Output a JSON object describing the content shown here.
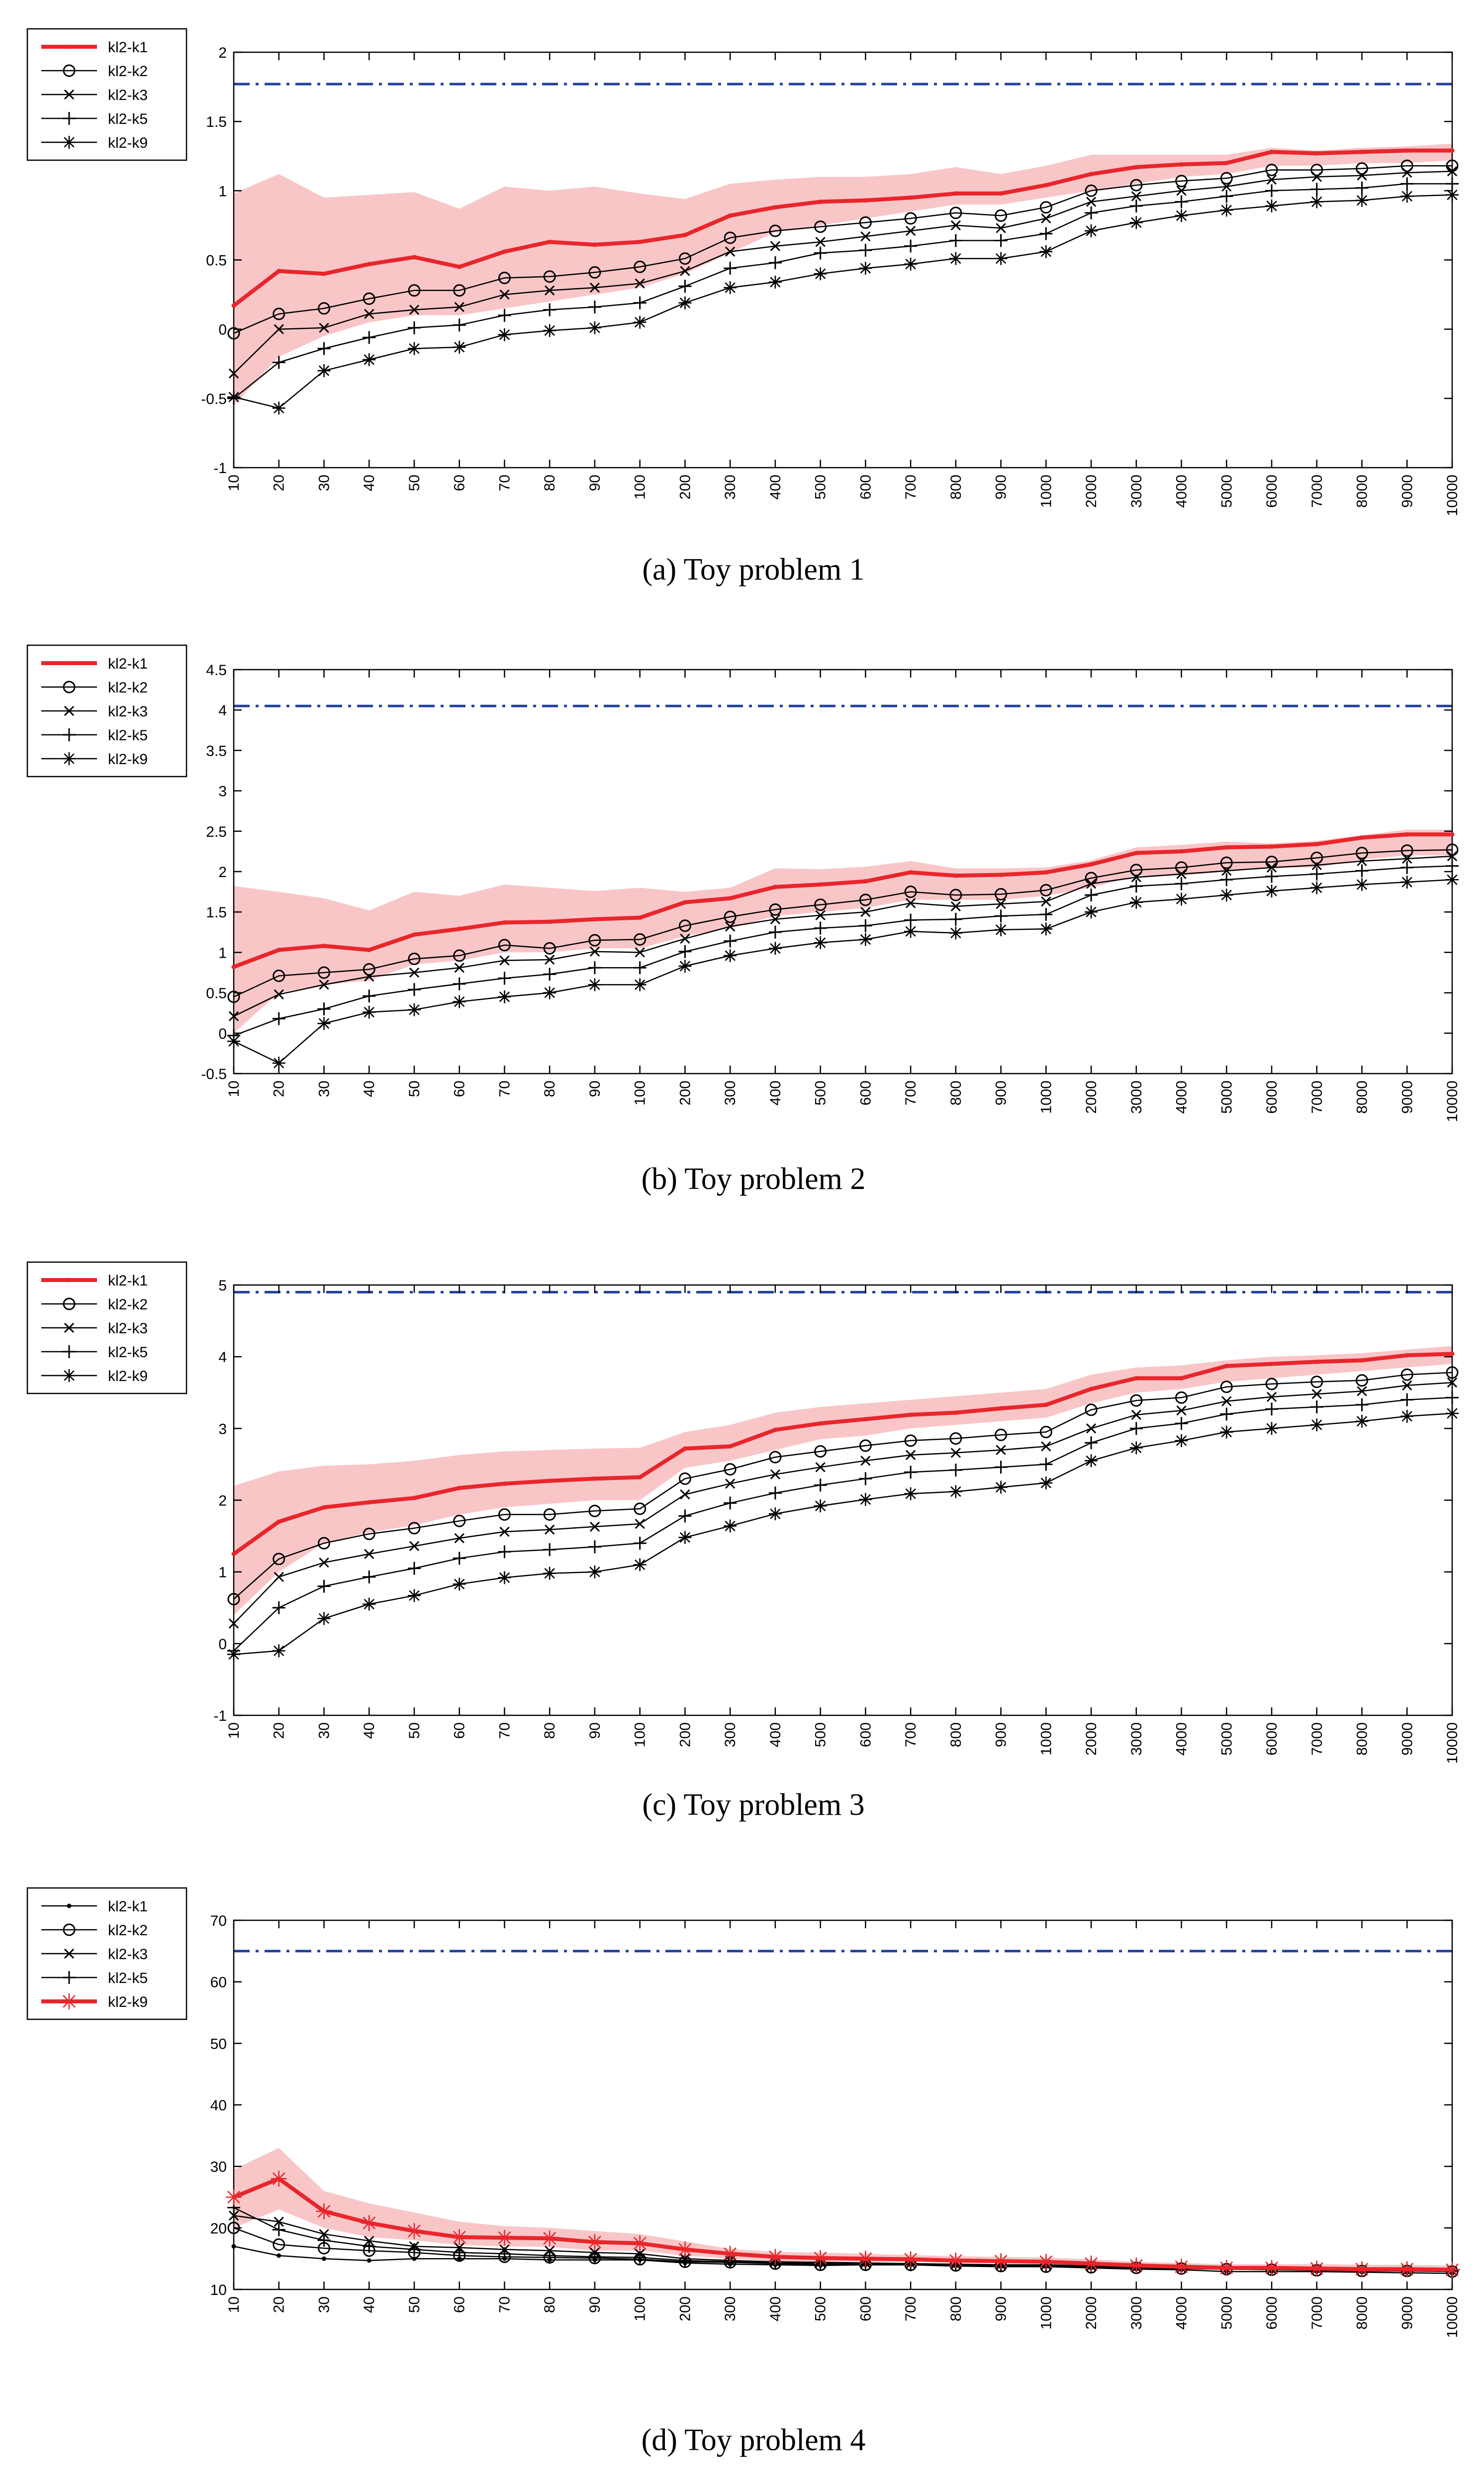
{
  "chart_data": [
    {
      "type": "line",
      "caption": "(a)  Toy problem 1",
      "x_ticks": [
        "10",
        "20",
        "30",
        "40",
        "50",
        "60",
        "70",
        "80",
        "90",
        "100",
        "200",
        "300",
        "400",
        "500",
        "600",
        "700",
        "800",
        "900",
        "1000",
        "2000",
        "3000",
        "4000",
        "5000",
        "6000",
        "7000",
        "8000",
        "9000",
        "10000"
      ],
      "ylim": [
        -1,
        2
      ],
      "y_ticks": [
        "-1",
        "-0.5",
        "0",
        "0.5",
        "1",
        "1.5",
        "2"
      ],
      "reference_line": 1.77,
      "highlight_series": "kl2-k1",
      "band": {
        "lower": [
          -0.55,
          -0.2,
          -0.05,
          0.05,
          0.1,
          0.1,
          0.15,
          0.2,
          0.25,
          0.3,
          0.4,
          0.55,
          0.7,
          0.75,
          0.8,
          0.85,
          0.9,
          0.9,
          0.95,
          1.0,
          1.05,
          1.1,
          1.12,
          1.18,
          1.18,
          1.2,
          1.2,
          1.22
        ],
        "upper": [
          0.98,
          1.12,
          0.95,
          0.97,
          0.99,
          0.87,
          1.03,
          1.0,
          1.03,
          0.98,
          0.94,
          1.05,
          1.08,
          1.1,
          1.1,
          1.12,
          1.17,
          1.12,
          1.18,
          1.26,
          1.26,
          1.26,
          1.26,
          1.31,
          1.29,
          1.31,
          1.32,
          1.34
        ]
      },
      "series": [
        {
          "name": "kl2-k1",
          "values": [
            0.17,
            0.42,
            0.4,
            0.47,
            0.52,
            0.45,
            0.56,
            0.63,
            0.61,
            0.63,
            0.68,
            0.82,
            0.88,
            0.92,
            0.93,
            0.95,
            0.98,
            0.98,
            1.04,
            1.12,
            1.17,
            1.19,
            1.2,
            1.28,
            1.27,
            1.28,
            1.29,
            1.29
          ]
        },
        {
          "name": "kl2-k2",
          "values": [
            -0.03,
            0.11,
            0.15,
            0.22,
            0.28,
            0.28,
            0.37,
            0.38,
            0.41,
            0.45,
            0.51,
            0.66,
            0.71,
            0.74,
            0.77,
            0.8,
            0.84,
            0.82,
            0.88,
            1.0,
            1.04,
            1.07,
            1.09,
            1.15,
            1.15,
            1.16,
            1.18,
            1.18
          ]
        },
        {
          "name": "kl2-k3",
          "values": [
            -0.32,
            0.0,
            0.01,
            0.11,
            0.14,
            0.16,
            0.25,
            0.28,
            0.3,
            0.33,
            0.42,
            0.56,
            0.6,
            0.63,
            0.67,
            0.71,
            0.75,
            0.73,
            0.8,
            0.92,
            0.96,
            1.0,
            1.03,
            1.08,
            1.1,
            1.11,
            1.13,
            1.14
          ]
        },
        {
          "name": "kl2-k5",
          "values": [
            -0.5,
            -0.24,
            -0.14,
            -0.06,
            0.01,
            0.03,
            0.1,
            0.14,
            0.16,
            0.19,
            0.31,
            0.44,
            0.48,
            0.55,
            0.57,
            0.6,
            0.64,
            0.64,
            0.69,
            0.84,
            0.89,
            0.92,
            0.96,
            1.0,
            1.01,
            1.02,
            1.05,
            1.05
          ]
        },
        {
          "name": "kl2-k9",
          "values": [
            -0.49,
            -0.57,
            -0.3,
            -0.22,
            -0.14,
            -0.13,
            -0.04,
            -0.01,
            0.01,
            0.05,
            0.19,
            0.3,
            0.34,
            0.4,
            0.44,
            0.47,
            0.51,
            0.51,
            0.56,
            0.71,
            0.77,
            0.82,
            0.86,
            0.89,
            0.92,
            0.93,
            0.96,
            0.97
          ]
        }
      ]
    },
    {
      "type": "line",
      "caption": "(b)  Toy problem 2",
      "x_ticks": [
        "10",
        "20",
        "30",
        "40",
        "50",
        "60",
        "70",
        "80",
        "90",
        "100",
        "200",
        "300",
        "400",
        "500",
        "600",
        "700",
        "800",
        "900",
        "1000",
        "2000",
        "3000",
        "4000",
        "5000",
        "6000",
        "7000",
        "8000",
        "9000",
        "10000"
      ],
      "ylim": [
        -0.5,
        4.5
      ],
      "y_ticks": [
        "-0.5",
        "0",
        "0.5",
        "1",
        "1.5",
        "2",
        "2.5",
        "3",
        "3.5",
        "4",
        "4.5"
      ],
      "reference_line": 4.05,
      "highlight_series": "kl2-k1",
      "band": {
        "lower": [
          0.0,
          0.5,
          0.6,
          0.65,
          0.85,
          0.9,
          1.0,
          1.0,
          1.05,
          1.05,
          1.2,
          1.3,
          1.45,
          1.5,
          1.55,
          1.65,
          1.65,
          1.65,
          1.7,
          1.8,
          1.95,
          1.95,
          2.0,
          2.05,
          2.05,
          2.15,
          2.2,
          2.2
        ],
        "upper": [
          1.82,
          1.75,
          1.67,
          1.52,
          1.75,
          1.7,
          1.84,
          1.8,
          1.76,
          1.8,
          1.75,
          1.8,
          2.04,
          2.03,
          2.06,
          2.13,
          2.04,
          2.04,
          2.05,
          2.14,
          2.3,
          2.33,
          2.37,
          2.35,
          2.38,
          2.45,
          2.52,
          2.52
        ]
      },
      "series": [
        {
          "name": "kl2-k1",
          "values": [
            0.82,
            1.03,
            1.08,
            1.03,
            1.22,
            1.29,
            1.37,
            1.38,
            1.41,
            1.43,
            1.62,
            1.67,
            1.81,
            1.84,
            1.88,
            1.99,
            1.95,
            1.96,
            1.99,
            2.09,
            2.23,
            2.25,
            2.3,
            2.31,
            2.34,
            2.42,
            2.46,
            2.46
          ]
        },
        {
          "name": "kl2-k2",
          "values": [
            0.45,
            0.71,
            0.75,
            0.79,
            0.92,
            0.96,
            1.09,
            1.05,
            1.15,
            1.16,
            1.33,
            1.44,
            1.53,
            1.59,
            1.65,
            1.75,
            1.71,
            1.72,
            1.77,
            1.92,
            2.02,
            2.05,
            2.11,
            2.12,
            2.17,
            2.23,
            2.26,
            2.27
          ]
        },
        {
          "name": "kl2-k3",
          "values": [
            0.21,
            0.48,
            0.6,
            0.7,
            0.75,
            0.81,
            0.9,
            0.91,
            1.01,
            1.0,
            1.17,
            1.32,
            1.41,
            1.46,
            1.5,
            1.61,
            1.57,
            1.6,
            1.63,
            1.85,
            1.93,
            1.97,
            2.01,
            2.05,
            2.08,
            2.13,
            2.16,
            2.19
          ]
        },
        {
          "name": "kl2-k5",
          "values": [
            -0.03,
            0.18,
            0.3,
            0.46,
            0.54,
            0.61,
            0.68,
            0.73,
            0.81,
            0.81,
            1.01,
            1.14,
            1.25,
            1.3,
            1.33,
            1.4,
            1.41,
            1.45,
            1.47,
            1.71,
            1.82,
            1.85,
            1.9,
            1.94,
            1.97,
            2.01,
            2.05,
            2.07
          ]
        },
        {
          "name": "kl2-k9",
          "values": [
            -0.1,
            -0.37,
            0.12,
            0.26,
            0.29,
            0.39,
            0.45,
            0.5,
            0.6,
            0.6,
            0.83,
            0.96,
            1.05,
            1.12,
            1.16,
            1.26,
            1.24,
            1.28,
            1.29,
            1.5,
            1.62,
            1.66,
            1.71,
            1.76,
            1.8,
            1.84,
            1.87,
            1.9
          ]
        }
      ]
    },
    {
      "type": "line",
      "caption": "(c)  Toy problem 3",
      "x_ticks": [
        "10",
        "20",
        "30",
        "40",
        "50",
        "60",
        "70",
        "80",
        "90",
        "100",
        "200",
        "300",
        "400",
        "500",
        "600",
        "700",
        "800",
        "900",
        "1000",
        "2000",
        "3000",
        "4000",
        "5000",
        "6000",
        "7000",
        "8000",
        "9000",
        "10000"
      ],
      "ylim": [
        -1,
        5
      ],
      "y_ticks": [
        "-1",
        "0",
        "1",
        "2",
        "3",
        "4",
        "5"
      ],
      "reference_line": 4.9,
      "highlight_series": "kl2-k1",
      "band": {
        "lower": [
          0.4,
          1.0,
          1.4,
          1.55,
          1.65,
          1.8,
          1.9,
          1.95,
          2.0,
          2.0,
          2.45,
          2.55,
          2.7,
          2.85,
          2.9,
          3.0,
          3.05,
          3.1,
          3.15,
          3.35,
          3.5,
          3.55,
          3.65,
          3.7,
          3.75,
          3.8,
          3.85,
          3.9
        ],
        "upper": [
          2.2,
          2.4,
          2.48,
          2.5,
          2.55,
          2.63,
          2.68,
          2.7,
          2.72,
          2.73,
          2.95,
          3.05,
          3.22,
          3.3,
          3.35,
          3.4,
          3.45,
          3.5,
          3.55,
          3.75,
          3.85,
          3.88,
          3.95,
          4.0,
          4.02,
          4.05,
          4.1,
          4.15
        ]
      },
      "series": [
        {
          "name": "kl2-k1",
          "values": [
            1.25,
            1.7,
            1.9,
            1.97,
            2.03,
            2.17,
            2.23,
            2.27,
            2.3,
            2.32,
            2.72,
            2.75,
            2.98,
            3.07,
            3.13,
            3.19,
            3.22,
            3.28,
            3.33,
            3.55,
            3.7,
            3.7,
            3.87,
            3.9,
            3.93,
            3.95,
            4.02,
            4.04
          ]
        },
        {
          "name": "kl2-k2",
          "values": [
            0.62,
            1.18,
            1.4,
            1.53,
            1.61,
            1.71,
            1.8,
            1.8,
            1.85,
            1.88,
            2.3,
            2.43,
            2.6,
            2.68,
            2.76,
            2.83,
            2.86,
            2.91,
            2.95,
            3.26,
            3.39,
            3.43,
            3.58,
            3.62,
            3.65,
            3.67,
            3.75,
            3.78
          ]
        },
        {
          "name": "kl2-k3",
          "values": [
            0.28,
            0.93,
            1.13,
            1.25,
            1.36,
            1.47,
            1.56,
            1.59,
            1.63,
            1.67,
            2.08,
            2.23,
            2.36,
            2.46,
            2.55,
            2.63,
            2.66,
            2.7,
            2.75,
            3.0,
            3.19,
            3.25,
            3.38,
            3.44,
            3.48,
            3.52,
            3.6,
            3.64
          ]
        },
        {
          "name": "kl2-k5",
          "values": [
            -0.1,
            0.5,
            0.8,
            0.93,
            1.05,
            1.19,
            1.28,
            1.31,
            1.35,
            1.4,
            1.78,
            1.96,
            2.1,
            2.21,
            2.3,
            2.39,
            2.42,
            2.46,
            2.5,
            2.8,
            3.0,
            3.07,
            3.2,
            3.27,
            3.3,
            3.33,
            3.4,
            3.43
          ]
        },
        {
          "name": "kl2-k9",
          "values": [
            -0.15,
            -0.1,
            0.35,
            0.55,
            0.67,
            0.83,
            0.92,
            0.98,
            1.0,
            1.1,
            1.48,
            1.64,
            1.81,
            1.92,
            2.01,
            2.09,
            2.12,
            2.18,
            2.24,
            2.55,
            2.73,
            2.83,
            2.95,
            3.0,
            3.05,
            3.1,
            3.17,
            3.21
          ]
        }
      ]
    },
    {
      "type": "line",
      "caption": "(d)  Toy problem 4",
      "x_ticks": [
        "10",
        "20",
        "30",
        "40",
        "50",
        "60",
        "70",
        "80",
        "90",
        "100",
        "200",
        "300",
        "400",
        "500",
        "600",
        "700",
        "800",
        "900",
        "1000",
        "2000",
        "3000",
        "4000",
        "5000",
        "6000",
        "7000",
        "8000",
        "9000",
        "10000"
      ],
      "ylim": [
        10,
        70
      ],
      "y_ticks": [
        "10",
        "20",
        "30",
        "40",
        "50",
        "60",
        "70"
      ],
      "reference_line": 65,
      "highlight_series": "kl2-k9",
      "band": {
        "lower": [
          20.0,
          23.0,
          20.0,
          18.5,
          18.0,
          17.2,
          17.0,
          16.9,
          16.3,
          16.3,
          15.5,
          15.0,
          14.6,
          14.5,
          14.5,
          14.5,
          14.3,
          14.3,
          14.3,
          14.0,
          13.7,
          13.5,
          13.2,
          13.2,
          13.2,
          13.0,
          13.0,
          12.8
        ],
        "upper": [
          29.5,
          33.0,
          26.0,
          24.0,
          22.5,
          21.0,
          20.3,
          20.0,
          19.5,
          19.0,
          17.8,
          16.6,
          16.1,
          16.0,
          15.8,
          15.6,
          15.4,
          15.3,
          15.2,
          14.9,
          14.5,
          14.3,
          14.1,
          14.1,
          14.1,
          14.0,
          14.0,
          13.9
        ]
      },
      "series": [
        {
          "name": "kl2-k1",
          "values": [
            17.0,
            15.5,
            15.0,
            14.7,
            15.0,
            15.0,
            15.0,
            14.8,
            14.8,
            14.8,
            14.3,
            14.1,
            14.0,
            13.9,
            14.0,
            14.0,
            13.8,
            13.7,
            13.7,
            13.5,
            13.3,
            13.2,
            12.9,
            12.9,
            12.9,
            12.8,
            12.7,
            12.6
          ]
        },
        {
          "name": "kl2-k2",
          "values": [
            20.0,
            17.3,
            16.7,
            16.3,
            16.0,
            15.5,
            15.3,
            15.2,
            15.1,
            14.9,
            14.5,
            14.4,
            14.2,
            14.0,
            14.0,
            14.0,
            13.9,
            13.8,
            13.7,
            13.6,
            13.5,
            13.4,
            13.3,
            13.2,
            13.1,
            13.0,
            13.0,
            12.9
          ]
        },
        {
          "name": "kl2-k3",
          "values": [
            22.0,
            21.0,
            19.0,
            17.9,
            17.0,
            16.8,
            16.5,
            16.3,
            16.0,
            15.8,
            15.0,
            14.7,
            14.5,
            14.4,
            14.3,
            14.2,
            14.1,
            14.0,
            14.0,
            13.8,
            13.6,
            13.5,
            13.4,
            13.3,
            13.3,
            13.2,
            13.1,
            13.1
          ]
        },
        {
          "name": "kl2-k5",
          "values": [
            23.3,
            19.7,
            18.0,
            17.0,
            16.5,
            16.0,
            15.8,
            15.5,
            15.3,
            15.2,
            14.7,
            14.5,
            14.3,
            14.2,
            14.1,
            14.0,
            14.0,
            13.9,
            13.9,
            13.7,
            13.6,
            13.4,
            13.3,
            13.3,
            13.2,
            13.1,
            13.1,
            13.0
          ]
        },
        {
          "name": "kl2-k9",
          "values": [
            25.0,
            28.0,
            22.7,
            20.8,
            19.5,
            18.5,
            18.4,
            18.3,
            17.7,
            17.5,
            16.5,
            15.8,
            15.3,
            15.1,
            15.0,
            14.9,
            14.7,
            14.6,
            14.5,
            14.2,
            13.9,
            13.7,
            13.5,
            13.5,
            13.4,
            13.3,
            13.3,
            13.2
          ]
        }
      ]
    }
  ]
}
